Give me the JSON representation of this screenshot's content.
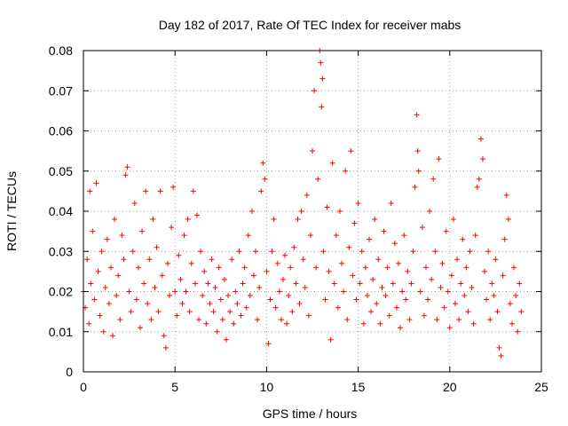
{
  "chart_data": {
    "type": "scatter",
    "title": "Day 182 of 2017, Rate Of TEC Index for receiver mabs",
    "xlabel": "GPS time / hours",
    "ylabel": "ROTI / TECUs",
    "xlim": [
      0,
      25
    ],
    "ylim": [
      0,
      0.08
    ],
    "xticks": [
      0,
      5,
      10,
      15,
      20,
      25
    ],
    "xtick_labels": [
      "0",
      "5",
      "10",
      "15",
      "20",
      "25"
    ],
    "yticks": [
      0,
      0.01,
      0.02,
      0.03,
      0.04,
      0.05,
      0.06,
      0.07,
      0.08
    ],
    "ytick_labels": [
      "0",
      "0.01",
      "0.02",
      "0.03",
      "0.04",
      "0.05",
      "0.06",
      "0.07",
      "0.08"
    ],
    "grid": true,
    "marker": "plus",
    "color": "#ff0000",
    "series": [
      {
        "points": [
          [
            0.0,
            0.02
          ],
          [
            0.1,
            0.016
          ],
          [
            0.2,
            0.028
          ],
          [
            0.3,
            0.012
          ],
          [
            0.35,
            0.045
          ],
          [
            0.4,
            0.022
          ],
          [
            0.5,
            0.035
          ],
          [
            0.6,
            0.018
          ],
          [
            0.7,
            0.047
          ],
          [
            0.8,
            0.025
          ],
          [
            0.9,
            0.014
          ],
          [
            1.0,
            0.03
          ],
          [
            1.1,
            0.01
          ],
          [
            1.2,
            0.021
          ],
          [
            1.3,
            0.033
          ],
          [
            1.4,
            0.017
          ],
          [
            1.5,
            0.026
          ],
          [
            1.6,
            0.009
          ],
          [
            1.7,
            0.038
          ],
          [
            1.8,
            0.019
          ],
          [
            1.9,
            0.024
          ],
          [
            2.0,
            0.013
          ],
          [
            2.1,
            0.034
          ],
          [
            2.2,
            0.028
          ],
          [
            2.3,
            0.049
          ],
          [
            2.4,
            0.051
          ],
          [
            2.5,
            0.02
          ],
          [
            2.6,
            0.015
          ],
          [
            2.7,
            0.03
          ],
          [
            2.8,
            0.042
          ],
          [
            2.9,
            0.018
          ],
          [
            3.0,
            0.026
          ],
          [
            3.1,
            0.011
          ],
          [
            3.2,
            0.035
          ],
          [
            3.3,
            0.022
          ],
          [
            3.4,
            0.045
          ],
          [
            3.5,
            0.017
          ],
          [
            3.6,
            0.028
          ],
          [
            3.7,
            0.013
          ],
          [
            3.8,
            0.038
          ],
          [
            3.9,
            0.021
          ],
          [
            4.0,
            0.031
          ],
          [
            4.1,
            0.015
          ],
          [
            4.2,
            0.045
          ],
          [
            4.3,
            0.024
          ],
          [
            4.4,
            0.009
          ],
          [
            4.5,
            0.006
          ],
          [
            4.6,
            0.027
          ],
          [
            4.7,
            0.019
          ],
          [
            4.8,
            0.036
          ],
          [
            4.9,
            0.046
          ],
          [
            5.0,
            0.02
          ],
          [
            5.1,
            0.014
          ],
          [
            5.2,
            0.029
          ],
          [
            5.3,
            0.023
          ],
          [
            5.4,
            0.017
          ],
          [
            5.5,
            0.034
          ],
          [
            5.6,
            0.02
          ],
          [
            5.7,
            0.038
          ],
          [
            5.8,
            0.015
          ],
          [
            5.9,
            0.027
          ],
          [
            6.0,
            0.045
          ],
          [
            6.1,
            0.022
          ],
          [
            6.2,
            0.039
          ],
          [
            6.3,
            0.013
          ],
          [
            6.4,
            0.03
          ],
          [
            6.5,
            0.019
          ],
          [
            6.6,
            0.025
          ],
          [
            6.7,
            0.012
          ],
          [
            6.8,
            0.022
          ],
          [
            6.9,
            0.017
          ],
          [
            7.0,
            0.028
          ],
          [
            7.1,
            0.015
          ],
          [
            7.2,
            0.021
          ],
          [
            7.3,
            0.01
          ],
          [
            7.4,
            0.026
          ],
          [
            7.5,
            0.018
          ],
          [
            7.6,
            0.013
          ],
          [
            7.7,
            0.023
          ],
          [
            7.8,
            0.008
          ],
          [
            7.9,
            0.019
          ],
          [
            8.0,
            0.015
          ],
          [
            8.1,
            0.028
          ],
          [
            8.2,
            0.012
          ],
          [
            8.3,
            0.02
          ],
          [
            8.4,
            0.017
          ],
          [
            8.5,
            0.03
          ],
          [
            8.6,
            0.014
          ],
          [
            8.7,
            0.022
          ],
          [
            8.8,
            0.026
          ],
          [
            8.9,
            0.016
          ],
          [
            9.0,
            0.034
          ],
          [
            9.1,
            0.019
          ],
          [
            9.2,
            0.04
          ],
          [
            9.3,
            0.024
          ],
          [
            9.4,
            0.03
          ],
          [
            9.5,
            0.013
          ],
          [
            9.6,
            0.021
          ],
          [
            9.7,
            0.045
          ],
          [
            9.8,
            0.052
          ],
          [
            9.9,
            0.048
          ],
          [
            10.0,
            0.025
          ],
          [
            10.1,
            0.007
          ],
          [
            10.2,
            0.018
          ],
          [
            10.3,
            0.03
          ],
          [
            10.4,
            0.038
          ],
          [
            10.5,
            0.016
          ],
          [
            10.6,
            0.027
          ],
          [
            10.7,
            0.02
          ],
          [
            10.8,
            0.013
          ],
          [
            10.9,
            0.023
          ],
          [
            11.0,
            0.029
          ],
          [
            11.1,
            0.012
          ],
          [
            11.2,
            0.019
          ],
          [
            11.3,
            0.026
          ],
          [
            11.4,
            0.015
          ],
          [
            11.5,
            0.031
          ],
          [
            11.6,
            0.022
          ],
          [
            11.7,
            0.038
          ],
          [
            11.8,
            0.017
          ],
          [
            11.9,
            0.04
          ],
          [
            12.0,
            0.028
          ],
          [
            12.1,
            0.021
          ],
          [
            12.2,
            0.044
          ],
          [
            12.3,
            0.014
          ],
          [
            12.4,
            0.034
          ],
          [
            12.5,
            0.055
          ],
          [
            12.6,
            0.07
          ],
          [
            12.7,
            0.026
          ],
          [
            12.8,
            0.048
          ],
          [
            12.9,
            0.08
          ],
          [
            12.95,
            0.077
          ],
          [
            13.0,
            0.066
          ],
          [
            13.05,
            0.073
          ],
          [
            13.1,
            0.03
          ],
          [
            13.2,
            0.018
          ],
          [
            13.3,
            0.041
          ],
          [
            13.4,
            0.025
          ],
          [
            13.5,
            0.008
          ],
          [
            13.6,
            0.052
          ],
          [
            13.7,
            0.022
          ],
          [
            13.8,
            0.034
          ],
          [
            13.9,
            0.016
          ],
          [
            14.0,
            0.04
          ],
          [
            14.1,
            0.027
          ],
          [
            14.2,
            0.02
          ],
          [
            14.3,
            0.05
          ],
          [
            14.4,
            0.013
          ],
          [
            14.5,
            0.031
          ],
          [
            14.6,
            0.055
          ],
          [
            14.7,
            0.024
          ],
          [
            14.8,
            0.037
          ],
          [
            14.9,
            0.018
          ],
          [
            15.0,
            0.042
          ],
          [
            15.1,
            0.022
          ],
          [
            15.2,
            0.03
          ],
          [
            15.3,
            0.012
          ],
          [
            15.4,
            0.026
          ],
          [
            15.5,
            0.019
          ],
          [
            15.6,
            0.033
          ],
          [
            15.7,
            0.015
          ],
          [
            15.8,
            0.023
          ],
          [
            15.9,
            0.038
          ],
          [
            16.0,
            0.017
          ],
          [
            16.1,
            0.028
          ],
          [
            16.2,
            0.012
          ],
          [
            16.3,
            0.021
          ],
          [
            16.4,
            0.035
          ],
          [
            16.5,
            0.019
          ],
          [
            16.6,
            0.026
          ],
          [
            16.7,
            0.014
          ],
          [
            16.8,
            0.042
          ],
          [
            16.9,
            0.022
          ],
          [
            17.0,
            0.032
          ],
          [
            17.1,
            0.016
          ],
          [
            17.2,
            0.027
          ],
          [
            17.3,
            0.011
          ],
          [
            17.4,
            0.02
          ],
          [
            17.5,
            0.034
          ],
          [
            17.6,
            0.018
          ],
          [
            17.7,
            0.025
          ],
          [
            17.8,
            0.013
          ],
          [
            17.9,
            0.022
          ],
          [
            18.0,
            0.03
          ],
          [
            18.1,
            0.046
          ],
          [
            18.2,
            0.064
          ],
          [
            18.25,
            0.055
          ],
          [
            18.3,
            0.05
          ],
          [
            18.4,
            0.02
          ],
          [
            18.5,
            0.036
          ],
          [
            18.6,
            0.014
          ],
          [
            18.7,
            0.026
          ],
          [
            18.8,
            0.018
          ],
          [
            18.9,
            0.04
          ],
          [
            19.0,
            0.023
          ],
          [
            19.1,
            0.048
          ],
          [
            19.2,
            0.03
          ],
          [
            19.3,
            0.013
          ],
          [
            19.4,
            0.053
          ],
          [
            19.5,
            0.021
          ],
          [
            19.6,
            0.027
          ],
          [
            19.7,
            0.016
          ],
          [
            19.8,
            0.035
          ],
          [
            19.9,
            0.02
          ],
          [
            20.0,
            0.011
          ],
          [
            20.1,
            0.024
          ],
          [
            20.2,
            0.038
          ],
          [
            20.3,
            0.017
          ],
          [
            20.4,
            0.028
          ],
          [
            20.5,
            0.013
          ],
          [
            20.6,
            0.022
          ],
          [
            20.7,
            0.033
          ],
          [
            20.8,
            0.019
          ],
          [
            20.9,
            0.026
          ],
          [
            21.0,
            0.015
          ],
          [
            21.1,
            0.03
          ],
          [
            21.2,
            0.021
          ],
          [
            21.3,
            0.012
          ],
          [
            21.4,
            0.034
          ],
          [
            21.5,
            0.046
          ],
          [
            21.6,
            0.048
          ],
          [
            21.7,
            0.058
          ],
          [
            21.8,
            0.053
          ],
          [
            21.9,
            0.025
          ],
          [
            22.0,
            0.018
          ],
          [
            22.1,
            0.03
          ],
          [
            22.2,
            0.013
          ],
          [
            22.3,
            0.022
          ],
          [
            22.4,
            0.019
          ],
          [
            22.5,
            0.028
          ],
          [
            22.6,
            0.015
          ],
          [
            22.7,
            0.006
          ],
          [
            22.8,
            0.004
          ],
          [
            22.9,
            0.024
          ],
          [
            23.0,
            0.033
          ],
          [
            23.1,
            0.044
          ],
          [
            23.2,
            0.038
          ],
          [
            23.3,
            0.017
          ],
          [
            23.4,
            0.012
          ],
          [
            23.5,
            0.026
          ],
          [
            23.6,
            0.019
          ],
          [
            23.7,
            0.01
          ],
          [
            23.8,
            0.022
          ],
          [
            23.9,
            0.015
          ]
        ]
      }
    ]
  }
}
